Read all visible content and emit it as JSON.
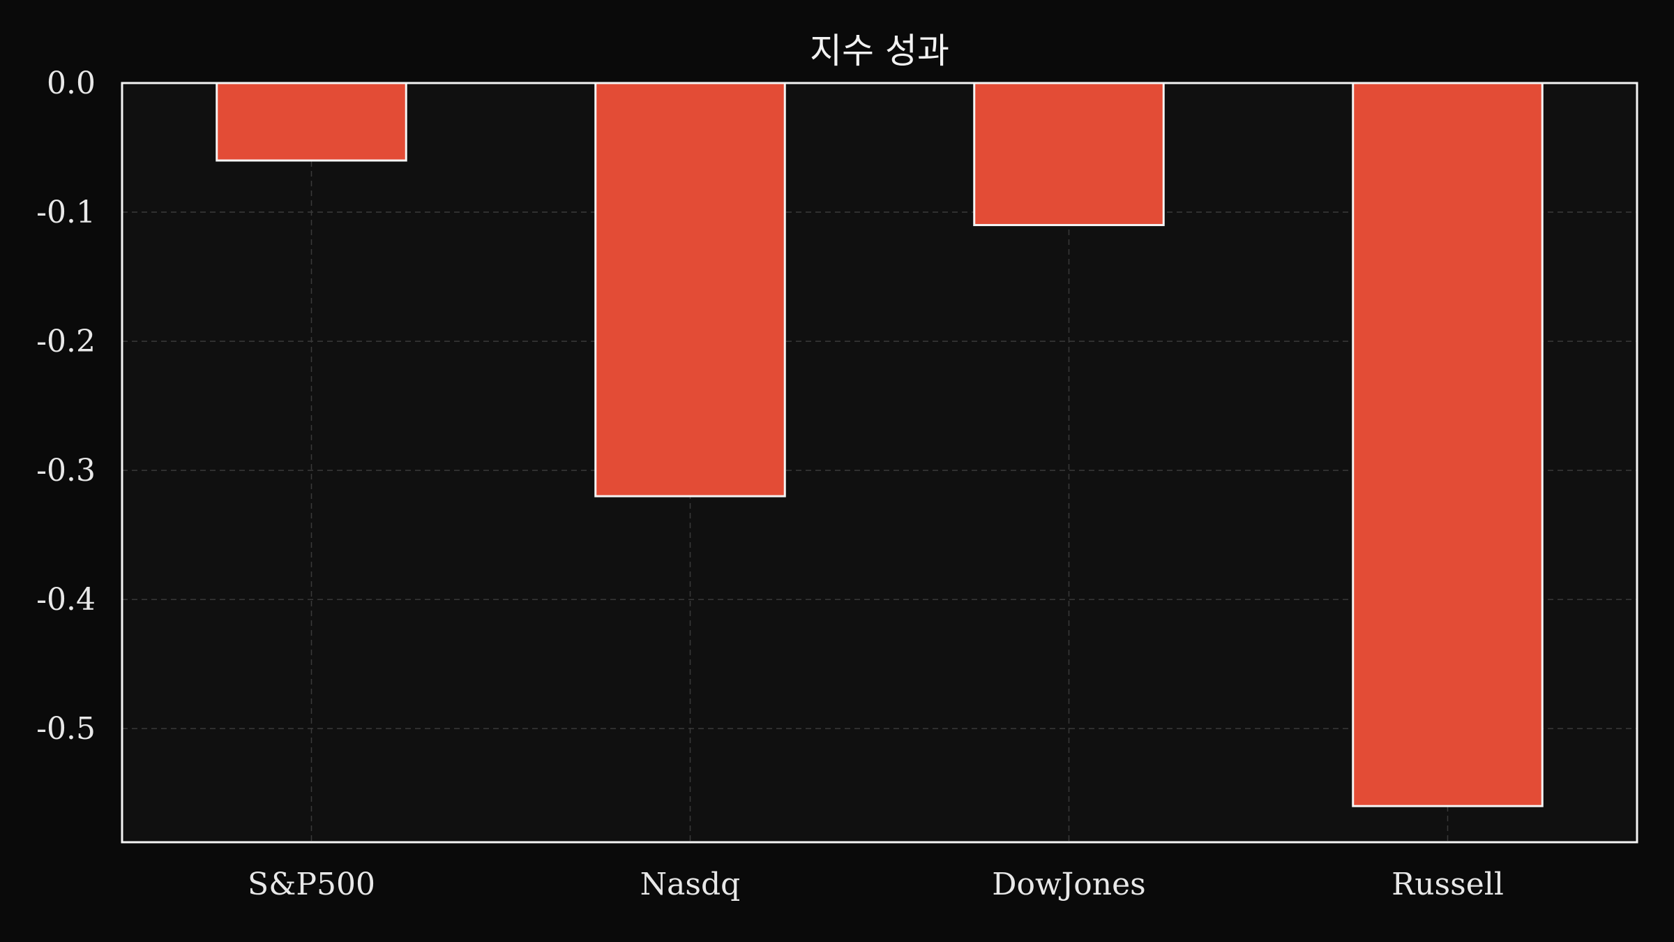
{
  "chart_data": {
    "type": "bar",
    "title": "지수 성과",
    "xlabel": "",
    "ylabel": "",
    "categories": [
      "S&P500",
      "Nasdq",
      "DowJones",
      "Russell"
    ],
    "values": [
      -0.06,
      -0.32,
      -0.11,
      -0.56
    ],
    "ylim": [
      -0.588,
      0.0
    ],
    "yticks": [
      0.0,
      -0.1,
      -0.2,
      -0.3,
      -0.4,
      -0.5
    ],
    "ytick_labels": [
      "0.0",
      "-0.1",
      "-0.2",
      "-0.3",
      "-0.4",
      "-0.5"
    ],
    "grid": true,
    "legend": "none"
  },
  "colors": {
    "background": "#0a0a0a",
    "plot_background": "#101010",
    "bar_fill": "#e34c36",
    "bar_edge": "#f5f5f5",
    "grid": "#3a3a3a",
    "text": "#e8e8e8"
  }
}
